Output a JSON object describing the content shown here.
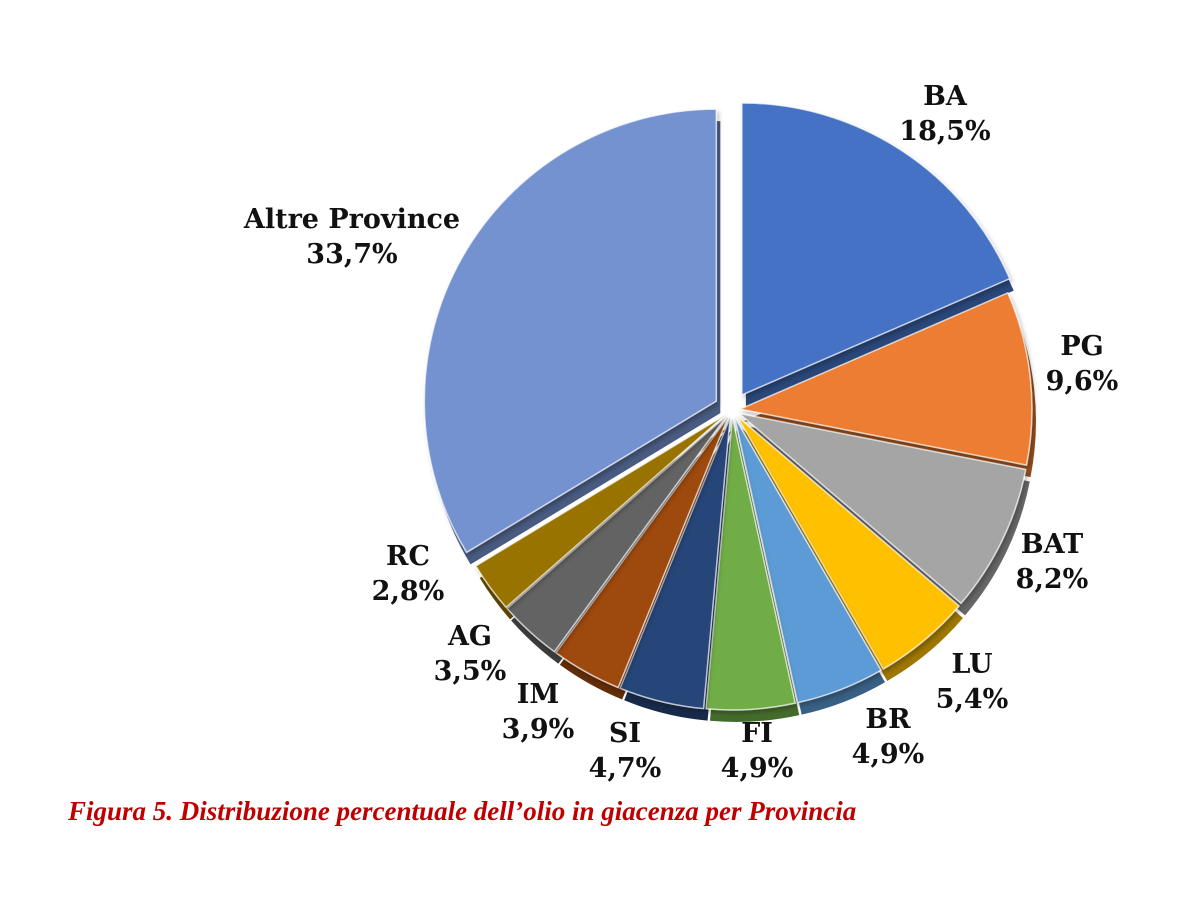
{
  "chart_data": {
    "type": "pie",
    "title": "",
    "categories": [
      "BA",
      "PG",
      "BAT",
      "LU",
      "BR",
      "FI",
      "SI",
      "IM",
      "AG",
      "RC",
      "Altre Province"
    ],
    "values": [
      18.5,
      9.6,
      8.2,
      5.4,
      4.9,
      4.9,
      4.7,
      3.9,
      3.5,
      2.8,
      33.7
    ],
    "value_labels": [
      "18,5%",
      "9,6%",
      "8,2%",
      "5,4%",
      "4,9%",
      "4,9%",
      "4,7%",
      "3,9%",
      "3,5%",
      "2,8%",
      "33,7%"
    ],
    "colors": [
      "#4472c4",
      "#ed7d31",
      "#a5a5a5",
      "#ffc000",
      "#5b9bd5",
      "#70ad47",
      "#264478",
      "#9e480e",
      "#636363",
      "#997300",
      "#7592d0"
    ],
    "exploded": true,
    "style": "3d-pie",
    "legend": "none"
  },
  "caption": "Figura 5. Distribuzione percentuale dell’olio in giacenza per Provincia"
}
